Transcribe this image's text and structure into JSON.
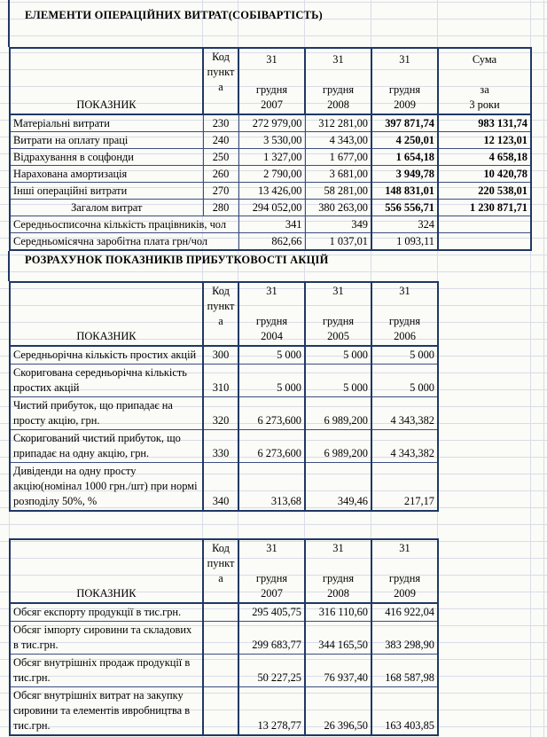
{
  "colors": {
    "table_border": "#1f3864",
    "grid_line": "#dadce8",
    "background": "#fbfbf7"
  },
  "titles": {
    "section1": "ЕЛЕМЕНТИ ОПЕРАЦІЙНИХ ВИТРАТ(СОБІВАРТІСТЬ)",
    "section2": "РОЗРАХУНОК ПОКАЗНИКІВ ПРИБУТКОВОСТІ АКЦІЙ"
  },
  "tables": [
    {
      "name": "operating-costs",
      "header": {
        "indicator": "ПОКАЗНИК",
        "code": [
          "Код",
          "пункт",
          "а"
        ],
        "periods": [
          [
            "31",
            "",
            "грудня",
            "2007"
          ],
          [
            "31",
            "",
            "грудня",
            "2008"
          ],
          [
            "31",
            "",
            "грудня",
            "2009"
          ]
        ],
        "sum": [
          "Сума",
          "",
          "за",
          "3 роки"
        ]
      },
      "rows": [
        {
          "label": "Матеріальні витрати",
          "code": "230",
          "values": [
            "272 979,00",
            "312 281,00",
            "397 871,74"
          ],
          "sum": "983 131,74",
          "bold_last": true
        },
        {
          "label": "Витрати на оплату праці",
          "code": "240",
          "values": [
            "3 530,00",
            "4 343,00",
            "4 250,01"
          ],
          "sum": "12 123,01",
          "bold_last": true
        },
        {
          "label": "Відрахування в соцфонди",
          "code": "250",
          "values": [
            "1 327,00",
            "1 677,00",
            "1 654,18"
          ],
          "sum": "4 658,18",
          "bold_last": true
        },
        {
          "label": "Нарахована амортизація",
          "code": "260",
          "values": [
            "2 790,00",
            "3 681,00",
            "3 949,78"
          ],
          "sum": "10 420,78",
          "bold_last": true
        },
        {
          "label": "Інші операційні витрати",
          "code": "270",
          "values": [
            "13 426,00",
            "58 281,00",
            "148 831,01"
          ],
          "sum": "220 538,01",
          "bold_last": true
        },
        {
          "label": "Загалом витрат",
          "code": "280",
          "values": [
            "294 052,00",
            "380 263,00",
            "556 556,71"
          ],
          "sum": "1 230 871,71",
          "bold_last": true,
          "center_label": true
        },
        {
          "label": "Середньосписочна кількість працівників, чол",
          "code": null,
          "values": [
            "341",
            "349",
            "324"
          ],
          "sum": "",
          "span2": true
        },
        {
          "label": "Середньомісячна заробітна плата грн/чол",
          "code": null,
          "values": [
            "862,66",
            "1 037,01",
            "1 093,11"
          ],
          "sum": "",
          "span2": true
        }
      ]
    },
    {
      "name": "share-profitability",
      "header": {
        "indicator": "ПОКАЗНИК",
        "code": [
          "Код",
          "пункт",
          "а"
        ],
        "periods": [
          [
            "31",
            "",
            "грудня",
            "2004"
          ],
          [
            "31",
            "",
            "грудня",
            "2005"
          ],
          [
            "31",
            "",
            "грудня",
            "2006"
          ]
        ]
      },
      "rows": [
        {
          "label": "Середньорічна кількість простих акцій",
          "code": "300",
          "values": [
            "5 000",
            "5 000",
            "5 000"
          ]
        },
        {
          "label": "Скоригована середньорічна кількість простих акцій",
          "code": "310",
          "values": [
            "5 000",
            "5 000",
            "5 000"
          ]
        },
        {
          "label": "Чистий прибуток, що припадає на просту акцію, грн.",
          "code": "320",
          "values": [
            "6 273,600",
            "6 989,200",
            "4 343,382"
          ]
        },
        {
          "label": "Скоригований чистий прибуток, що припадає на одну акцію, грн.",
          "code": "330",
          "values": [
            "6 273,600",
            "6 989,200",
            "4 343,382"
          ]
        },
        {
          "label": "Дивіденди на одну просту акцію(номінал 1000 грн./шт)  при нормі розподілу 50%, %",
          "code": "340",
          "values": [
            "313,68",
            "349,46",
            "217,17"
          ]
        }
      ]
    },
    {
      "name": "export-import-volumes",
      "header": {
        "indicator": "ПОКАЗНИК",
        "code": [
          "Код",
          "пункт",
          "а"
        ],
        "periods": [
          [
            "31",
            "",
            "грудня",
            "2007"
          ],
          [
            "31",
            "",
            "грудня",
            "2008"
          ],
          [
            "31",
            "",
            "грудня",
            "2009"
          ]
        ]
      },
      "rows": [
        {
          "label": "Обсяг експорту продукції в тис.грн.",
          "code": "",
          "values": [
            "295 405,75",
            "316 110,60",
            "416 922,04"
          ]
        },
        {
          "label": "Обсяг імпорту сировини та складових в тис.грн.",
          "code": "",
          "values": [
            "299 683,77",
            "344 165,50",
            "383 298,90"
          ]
        },
        {
          "label": "Обсяг внутрішніх продаж продукції в тис.грн.",
          "code": "",
          "values": [
            "50 227,25",
            "76 937,40",
            "168 587,98"
          ]
        },
        {
          "label": "Обсяг внутрішніх витрат на закупку сировини та елементів ивробництва в тис.грн.",
          "code": "",
          "values": [
            "13 278,77",
            "26 396,50",
            "163 403,85"
          ]
        }
      ]
    }
  ]
}
